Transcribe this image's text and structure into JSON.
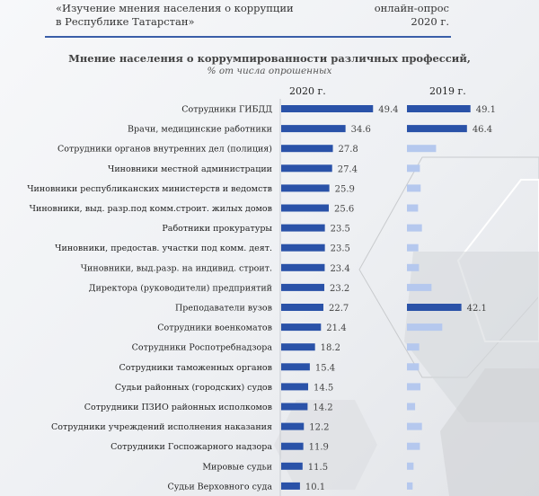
{
  "header": {
    "left_line1": "«Изучение мнения населения о коррупции",
    "left_line2": "в Республике Татарстан»",
    "right_line1": "онлайн-опрос",
    "right_line2": "2020 г."
  },
  "chart_data": {
    "type": "bar",
    "orientation": "horizontal",
    "title": "Мнение населения о коррумпированности различных профессий,",
    "subtitle": "% от числа опрошенных",
    "categories": [
      "Сотрудники ГИБДД",
      "Врачи, медицинские работники",
      "Сотрудники органов внутренних дел (полиция)",
      "Чиновники местной администрации",
      "Чиновники республиканских министерств и ведомств",
      "Чиновники, выд. разр.под комм.строит. жилых домов",
      "Работники прокуратуры",
      "Чиновники, предостав. участки под комм. деят.",
      "Чиновники, выд.разр. на индивид. строит.",
      "Директора (руководители) предприятий",
      "Преподаватели вузов",
      "Сотрудники военкоматов",
      "Сотрудники Роспотребнадзора",
      "Сотрудники таможенных органов",
      "Судьи районных (городских) судов",
      "Сотрудники ПЗИО районных исполкомов",
      "Сотрудники учреждений исполнения наказания",
      "Сотрудники  Госпожарного надзора",
      "Мировые судьи",
      "Судьи Верховного суда"
    ],
    "series": [
      {
        "name": "2020 г.",
        "color": "#2a52a8",
        "values": [
          49.4,
          34.6,
          27.8,
          27.4,
          25.9,
          25.6,
          23.5,
          23.5,
          23.4,
          23.2,
          22.7,
          21.4,
          18.2,
          15.4,
          14.5,
          14.2,
          12.2,
          11.9,
          11.5,
          10.1
        ],
        "labels_shown": [
          true,
          true,
          true,
          true,
          true,
          true,
          true,
          true,
          true,
          true,
          true,
          true,
          true,
          true,
          true,
          true,
          true,
          true,
          true,
          true
        ]
      },
      {
        "name": "2019 г.",
        "color": "#2a52a8",
        "muted_color": "#b5c8ee",
        "values": [
          49.1,
          46.4,
          22.5,
          10.0,
          10.6,
          8.6,
          11.6,
          8.8,
          9.3,
          19.0,
          42.1,
          27.3,
          9.5,
          9.3,
          10.4,
          6.3,
          11.6,
          10.0,
          5.1,
          4.4
        ],
        "labels_shown": [
          true,
          true,
          false,
          false,
          false,
          false,
          false,
          false,
          false,
          false,
          true,
          false,
          false,
          false,
          false,
          false,
          false,
          false,
          false,
          false
        ]
      }
    ],
    "xlabel": "",
    "ylabel": "",
    "grid": false,
    "legend": "none"
  }
}
